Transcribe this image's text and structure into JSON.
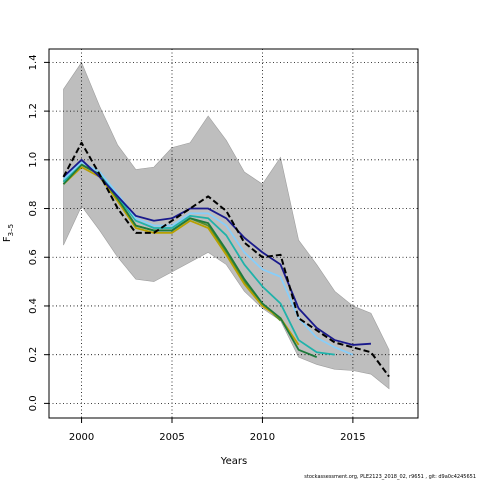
{
  "chart_data": {
    "type": "line",
    "xlabel": "Years",
    "ylabel": "F",
    "ylabel_subscript": "3–5",
    "xlim": [
      1998.2,
      2018.6
    ],
    "ylim": [
      -0.06,
      1.455
    ],
    "xticks": [
      2000,
      2005,
      2010,
      2015
    ],
    "yticks": [
      0.0,
      0.2,
      0.4,
      0.6,
      0.8,
      1.0,
      1.2,
      1.4
    ],
    "ytick_labels": [
      "0.0",
      "0.2",
      "0.4",
      "0.6",
      "0.8",
      "1.0",
      "1.2",
      "1.4"
    ],
    "grid": true,
    "band": {
      "color": "#bebebe",
      "x": [
        1999,
        2000,
        2001,
        2002,
        2003,
        2004,
        2005,
        2006,
        2007,
        2008,
        2009,
        2010,
        2011,
        2012,
        2013,
        2014,
        2015,
        2016,
        2017
      ],
      "upper": [
        1.29,
        1.4,
        1.22,
        1.06,
        0.96,
        0.97,
        1.05,
        1.07,
        1.18,
        1.08,
        0.95,
        0.9,
        1.01,
        0.67,
        0.57,
        0.46,
        0.4,
        0.37,
        0.22
      ],
      "lower": [
        0.65,
        0.81,
        0.71,
        0.6,
        0.51,
        0.5,
        0.54,
        0.58,
        0.62,
        0.57,
        0.46,
        0.39,
        0.34,
        0.19,
        0.16,
        0.14,
        0.135,
        0.12,
        0.06
      ]
    },
    "series": [
      {
        "color": "#000000",
        "style": "dashed",
        "x": [
          1999,
          2000,
          2001,
          2002,
          2003,
          2004,
          2005,
          2006,
          2007,
          2008,
          2009,
          2010,
          2011,
          2012,
          2013,
          2014,
          2015,
          2016,
          2017
        ],
        "values": [
          0.93,
          1.07,
          0.94,
          0.8,
          0.7,
          0.7,
          0.75,
          0.8,
          0.85,
          0.79,
          0.66,
          0.6,
          0.61,
          0.35,
          0.3,
          0.25,
          0.23,
          0.21,
          0.11
        ]
      },
      {
        "color": "#1a1a8c",
        "style": "solid",
        "x": [
          1999,
          2000,
          2001,
          2002,
          2003,
          2004,
          2005,
          2006,
          2007,
          2008,
          2009,
          2010,
          2011,
          2012,
          2013,
          2014,
          2015,
          2016
        ],
        "values": [
          0.93,
          1.0,
          0.93,
          0.85,
          0.77,
          0.75,
          0.76,
          0.8,
          0.8,
          0.76,
          0.68,
          0.62,
          0.57,
          0.39,
          0.31,
          0.26,
          0.24,
          0.245
        ]
      },
      {
        "color": "#87cefa",
        "style": "solid",
        "x": [
          1999,
          2000,
          2001,
          2002,
          2003,
          2004,
          2005,
          2006,
          2007,
          2008,
          2009,
          2010,
          2011,
          2012,
          2013,
          2014,
          2015
        ],
        "values": [
          0.92,
          0.99,
          0.95,
          0.86,
          0.76,
          0.73,
          0.73,
          0.78,
          0.78,
          0.73,
          0.62,
          0.55,
          0.52,
          0.35,
          0.27,
          0.23,
          0.2
        ]
      },
      {
        "color": "#20b2aa",
        "style": "solid",
        "x": [
          1999,
          2000,
          2001,
          2002,
          2003,
          2004,
          2005,
          2006,
          2007,
          2008,
          2009,
          2010,
          2011,
          2012,
          2013,
          2014
        ],
        "values": [
          0.91,
          0.99,
          0.95,
          0.85,
          0.75,
          0.72,
          0.72,
          0.77,
          0.76,
          0.69,
          0.57,
          0.48,
          0.41,
          0.26,
          0.21,
          0.2
        ]
      },
      {
        "color": "#1e7a3c",
        "style": "solid",
        "x": [
          1999,
          2000,
          2001,
          2002,
          2003,
          2004,
          2005,
          2006,
          2007,
          2008,
          2009,
          2010,
          2011,
          2012,
          2013
        ],
        "values": [
          0.9,
          0.98,
          0.94,
          0.84,
          0.73,
          0.71,
          0.71,
          0.76,
          0.74,
          0.63,
          0.51,
          0.41,
          0.35,
          0.22,
          0.19
        ]
      },
      {
        "color": "#b8a000",
        "style": "solid",
        "x": [
          1999,
          2000,
          2001,
          2002,
          2003,
          2004,
          2005,
          2006,
          2007,
          2008,
          2009,
          2010,
          2011,
          2012
        ],
        "values": [
          0.9,
          0.97,
          0.93,
          0.83,
          0.72,
          0.7,
          0.7,
          0.75,
          0.72,
          0.61,
          0.49,
          0.4,
          0.35,
          0.24
        ]
      },
      {
        "color": "#5a8c2a",
        "style": "solid",
        "x": [
          1999,
          2000,
          2001,
          2002,
          2003,
          2004,
          2005,
          2006,
          2007,
          2008,
          2009,
          2010,
          2011
        ],
        "values": [
          0.91,
          0.98,
          0.94,
          0.84,
          0.73,
          0.71,
          0.71,
          0.76,
          0.73,
          0.62,
          0.5,
          0.41,
          0.34
        ]
      }
    ]
  },
  "footer_text": "stockassessment.org, PLE2123_2018_02, r9651 , git: d9a0c4245651"
}
